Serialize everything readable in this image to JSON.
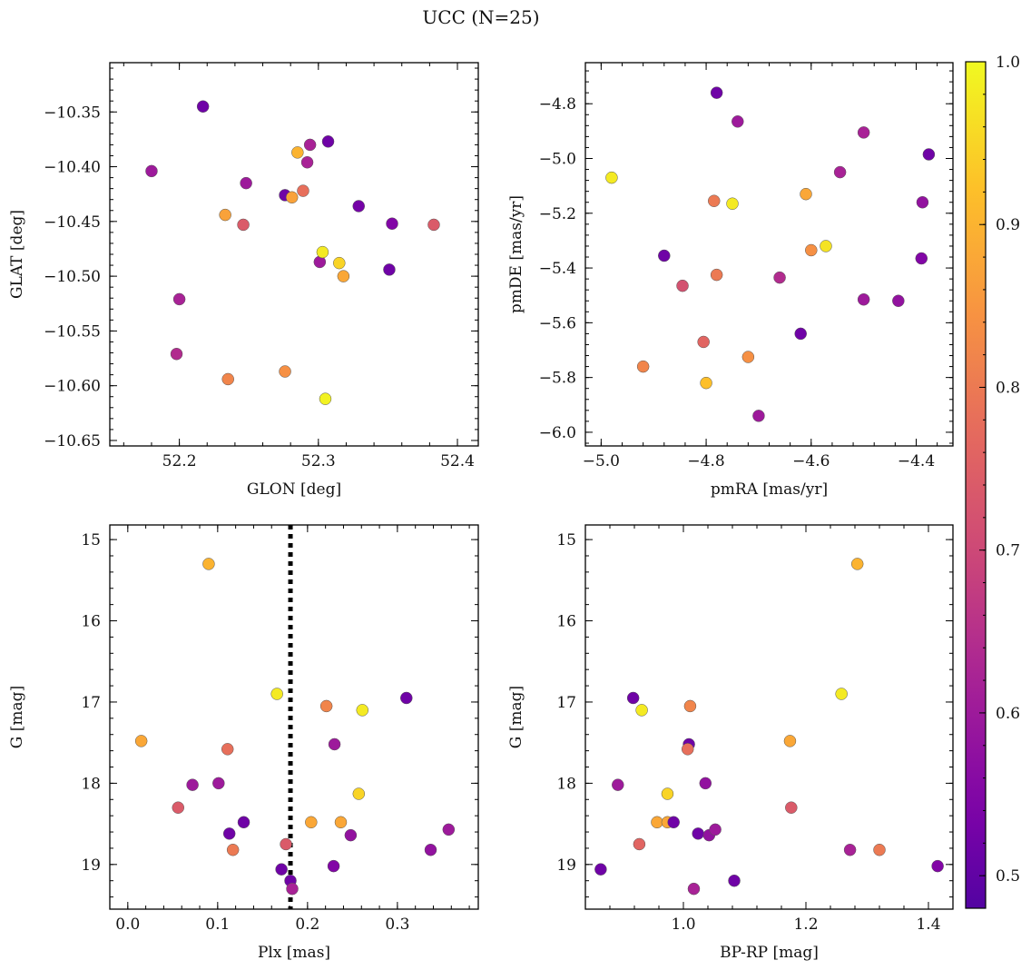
{
  "title": "UCC (N=25)",
  "colorbar": {
    "min": 0.48,
    "max": 1.0,
    "ticks": [
      0.5,
      0.6,
      0.7,
      0.8,
      0.9,
      1.0
    ],
    "tick_labels": [
      "0.5",
      "0.6",
      "0.7",
      "0.8",
      "0.9",
      "1.0"
    ],
    "colormap": "plasma"
  },
  "chart_data": [
    {
      "type": "scatter",
      "id": "glon-glat",
      "xlabel": "GLON [deg]",
      "ylabel": "GLAT [deg]",
      "xlim": [
        52.15,
        52.415
      ],
      "ylim": [
        -10.655,
        -10.305
      ],
      "xticks": [
        52.2,
        52.3,
        52.4
      ],
      "xtick_labels": [
        "52.2",
        "52.3",
        "52.4"
      ],
      "yticks": [
        -10.35,
        -10.4,
        -10.45,
        -10.5,
        -10.55,
        -10.6,
        -10.65
      ],
      "ytick_labels": [
        "−10.35",
        "−10.40",
        "−10.45",
        "−10.50",
        "−10.55",
        "−10.60",
        "−10.65"
      ],
      "points": [
        {
          "x": 52.217,
          "y": -10.345,
          "c": 0.52
        },
        {
          "x": 52.18,
          "y": -10.404,
          "c": 0.6
        },
        {
          "x": 52.2,
          "y": -10.521,
          "c": 0.62
        },
        {
          "x": 52.198,
          "y": -10.571,
          "c": 0.64
        },
        {
          "x": 52.248,
          "y": -10.415,
          "c": 0.6
        },
        {
          "x": 52.233,
          "y": -10.444,
          "c": 0.87
        },
        {
          "x": 52.246,
          "y": -10.453,
          "c": 0.74
        },
        {
          "x": 52.235,
          "y": -10.594,
          "c": 0.82
        },
        {
          "x": 52.276,
          "y": -10.426,
          "c": 0.52
        },
        {
          "x": 52.281,
          "y": -10.428,
          "c": 0.87
        },
        {
          "x": 52.289,
          "y": -10.422,
          "c": 0.78
        },
        {
          "x": 52.285,
          "y": -10.387,
          "c": 0.9
        },
        {
          "x": 52.294,
          "y": -10.38,
          "c": 0.62
        },
        {
          "x": 52.292,
          "y": -10.396,
          "c": 0.62
        },
        {
          "x": 52.307,
          "y": -10.377,
          "c": 0.52
        },
        {
          "x": 52.301,
          "y": -10.487,
          "c": 0.6
        },
        {
          "x": 52.303,
          "y": -10.478,
          "c": 0.98
        },
        {
          "x": 52.315,
          "y": -10.488,
          "c": 0.95
        },
        {
          "x": 52.318,
          "y": -10.5,
          "c": 0.88
        },
        {
          "x": 52.276,
          "y": -10.587,
          "c": 0.84
        },
        {
          "x": 52.305,
          "y": -10.612,
          "c": 0.99
        },
        {
          "x": 52.329,
          "y": -10.436,
          "c": 0.53
        },
        {
          "x": 52.353,
          "y": -10.452,
          "c": 0.55
        },
        {
          "x": 52.351,
          "y": -10.494,
          "c": 0.52
        },
        {
          "x": 52.383,
          "y": -10.453,
          "c": 0.74
        }
      ]
    },
    {
      "type": "scatter",
      "id": "pmra-pmde",
      "xlabel": "pmRA [mas/yr]",
      "ylabel": "pmDE [mas/yr]",
      "xlim": [
        -5.03,
        -4.33
      ],
      "ylim": [
        -6.05,
        -4.65
      ],
      "xticks": [
        -5.0,
        -4.8,
        -4.6,
        -4.4
      ],
      "xtick_labels": [
        "−5.0",
        "−4.8",
        "−4.6",
        "−4.4"
      ],
      "yticks": [
        -4.8,
        -5.0,
        -5.2,
        -5.4,
        -5.6,
        -5.8,
        -6.0
      ],
      "ytick_labels": [
        "−4.8",
        "−5.0",
        "−5.2",
        "−5.4",
        "−5.6",
        "−5.8",
        "−6.0"
      ],
      "points": [
        {
          "x": -4.78,
          "y": -4.76,
          "c": 0.52
        },
        {
          "x": -4.74,
          "y": -4.865,
          "c": 0.6
        },
        {
          "x": -4.5,
          "y": -4.905,
          "c": 0.62
        },
        {
          "x": -4.376,
          "y": -4.985,
          "c": 0.52
        },
        {
          "x": -4.98,
          "y": -5.07,
          "c": 0.98
        },
        {
          "x": -4.545,
          "y": -5.05,
          "c": 0.62
        },
        {
          "x": -4.785,
          "y": -5.155,
          "c": 0.8
        },
        {
          "x": -4.75,
          "y": -5.165,
          "c": 0.98
        },
        {
          "x": -4.61,
          "y": -5.13,
          "c": 0.88
        },
        {
          "x": -4.388,
          "y": -5.16,
          "c": 0.58
        },
        {
          "x": -4.88,
          "y": -5.355,
          "c": 0.52
        },
        {
          "x": -4.6,
          "y": -5.335,
          "c": 0.84
        },
        {
          "x": -4.572,
          "y": -5.32,
          "c": 0.97
        },
        {
          "x": -4.39,
          "y": -5.365,
          "c": 0.55
        },
        {
          "x": -4.845,
          "y": -5.465,
          "c": 0.72
        },
        {
          "x": -4.78,
          "y": -5.425,
          "c": 0.8
        },
        {
          "x": -4.66,
          "y": -5.435,
          "c": 0.64
        },
        {
          "x": -4.5,
          "y": -5.515,
          "c": 0.6
        },
        {
          "x": -4.434,
          "y": -5.52,
          "c": 0.58
        },
        {
          "x": -4.62,
          "y": -5.64,
          "c": 0.52
        },
        {
          "x": -4.805,
          "y": -5.67,
          "c": 0.76
        },
        {
          "x": -4.92,
          "y": -5.76,
          "c": 0.82
        },
        {
          "x": -4.72,
          "y": -5.725,
          "c": 0.84
        },
        {
          "x": -4.8,
          "y": -5.82,
          "c": 0.92
        },
        {
          "x": -4.7,
          "y": -5.94,
          "c": 0.6
        }
      ]
    },
    {
      "type": "scatter",
      "id": "plx-g",
      "xlabel": "Plx [mas]",
      "ylabel": "G [mag]",
      "xlim": [
        -0.02,
        0.39
      ],
      "ylim": [
        19.55,
        14.82
      ],
      "xticks": [
        0.0,
        0.1,
        0.2,
        0.3
      ],
      "xtick_labels": [
        "0.0",
        "0.1",
        "0.2",
        "0.3"
      ],
      "yticks": [
        15,
        16,
        17,
        18,
        19
      ],
      "ytick_labels": [
        "15",
        "16",
        "17",
        "18",
        "19"
      ],
      "vline": {
        "x": 0.181,
        "style": "dotted"
      },
      "points": [
        {
          "x": 0.09,
          "y": 15.3,
          "c": 0.9
        },
        {
          "x": 0.166,
          "y": 16.9,
          "c": 0.98
        },
        {
          "x": 0.221,
          "y": 17.05,
          "c": 0.82
        },
        {
          "x": 0.261,
          "y": 17.1,
          "c": 0.98
        },
        {
          "x": 0.31,
          "y": 16.95,
          "c": 0.52
        },
        {
          "x": 0.015,
          "y": 17.48,
          "c": 0.88
        },
        {
          "x": 0.111,
          "y": 17.58,
          "c": 0.78
        },
        {
          "x": 0.23,
          "y": 17.52,
          "c": 0.6
        },
        {
          "x": 0.072,
          "y": 18.02,
          "c": 0.6
        },
        {
          "x": 0.101,
          "y": 18.0,
          "c": 0.6
        },
        {
          "x": 0.257,
          "y": 18.13,
          "c": 0.95
        },
        {
          "x": 0.056,
          "y": 18.3,
          "c": 0.74
        },
        {
          "x": 0.129,
          "y": 18.48,
          "c": 0.52
        },
        {
          "x": 0.204,
          "y": 18.48,
          "c": 0.88
        },
        {
          "x": 0.237,
          "y": 18.48,
          "c": 0.88
        },
        {
          "x": 0.113,
          "y": 18.62,
          "c": 0.52
        },
        {
          "x": 0.248,
          "y": 18.64,
          "c": 0.58
        },
        {
          "x": 0.357,
          "y": 18.57,
          "c": 0.6
        },
        {
          "x": 0.117,
          "y": 18.82,
          "c": 0.8
        },
        {
          "x": 0.176,
          "y": 18.75,
          "c": 0.74
        },
        {
          "x": 0.337,
          "y": 18.82,
          "c": 0.58
        },
        {
          "x": 0.229,
          "y": 19.02,
          "c": 0.55
        },
        {
          "x": 0.171,
          "y": 19.06,
          "c": 0.52
        },
        {
          "x": 0.181,
          "y": 19.2,
          "c": 0.52
        },
        {
          "x": 0.183,
          "y": 19.3,
          "c": 0.62
        }
      ]
    },
    {
      "type": "scatter",
      "id": "bprp-g",
      "xlabel": "BP-RP [mag]",
      "ylabel": "G [mag]",
      "xlim": [
        0.84,
        1.44
      ],
      "ylim": [
        19.55,
        14.82
      ],
      "xticks": [
        1.0,
        1.2,
        1.4
      ],
      "xtick_labels": [
        "1.0",
        "1.2",
        "1.4"
      ],
      "yticks": [
        15,
        16,
        17,
        18,
        19
      ],
      "ytick_labels": [
        "15",
        "16",
        "17",
        "18",
        "19"
      ],
      "points": [
        {
          "x": 1.284,
          "y": 15.3,
          "c": 0.9
        },
        {
          "x": 1.258,
          "y": 16.9,
          "c": 0.98
        },
        {
          "x": 0.918,
          "y": 16.95,
          "c": 0.52
        },
        {
          "x": 1.011,
          "y": 17.05,
          "c": 0.82
        },
        {
          "x": 0.932,
          "y": 17.1,
          "c": 0.98
        },
        {
          "x": 1.174,
          "y": 17.48,
          "c": 0.88
        },
        {
          "x": 1.009,
          "y": 17.52,
          "c": 0.52
        },
        {
          "x": 1.007,
          "y": 17.58,
          "c": 0.78
        },
        {
          "x": 0.893,
          "y": 18.02,
          "c": 0.6
        },
        {
          "x": 1.036,
          "y": 18.0,
          "c": 0.58
        },
        {
          "x": 0.974,
          "y": 18.13,
          "c": 0.95
        },
        {
          "x": 1.176,
          "y": 18.3,
          "c": 0.74
        },
        {
          "x": 0.957,
          "y": 18.48,
          "c": 0.88
        },
        {
          "x": 0.974,
          "y": 18.48,
          "c": 0.88
        },
        {
          "x": 0.984,
          "y": 18.48,
          "c": 0.52
        },
        {
          "x": 1.024,
          "y": 18.62,
          "c": 0.52
        },
        {
          "x": 1.042,
          "y": 18.64,
          "c": 0.58
        },
        {
          "x": 1.052,
          "y": 18.57,
          "c": 0.6
        },
        {
          "x": 0.928,
          "y": 18.75,
          "c": 0.76
        },
        {
          "x": 1.272,
          "y": 18.82,
          "c": 0.62
        },
        {
          "x": 1.32,
          "y": 18.82,
          "c": 0.8
        },
        {
          "x": 1.415,
          "y": 19.02,
          "c": 0.55
        },
        {
          "x": 0.865,
          "y": 19.06,
          "c": 0.52
        },
        {
          "x": 1.083,
          "y": 19.2,
          "c": 0.52
        },
        {
          "x": 1.017,
          "y": 19.3,
          "c": 0.62
        }
      ]
    }
  ]
}
